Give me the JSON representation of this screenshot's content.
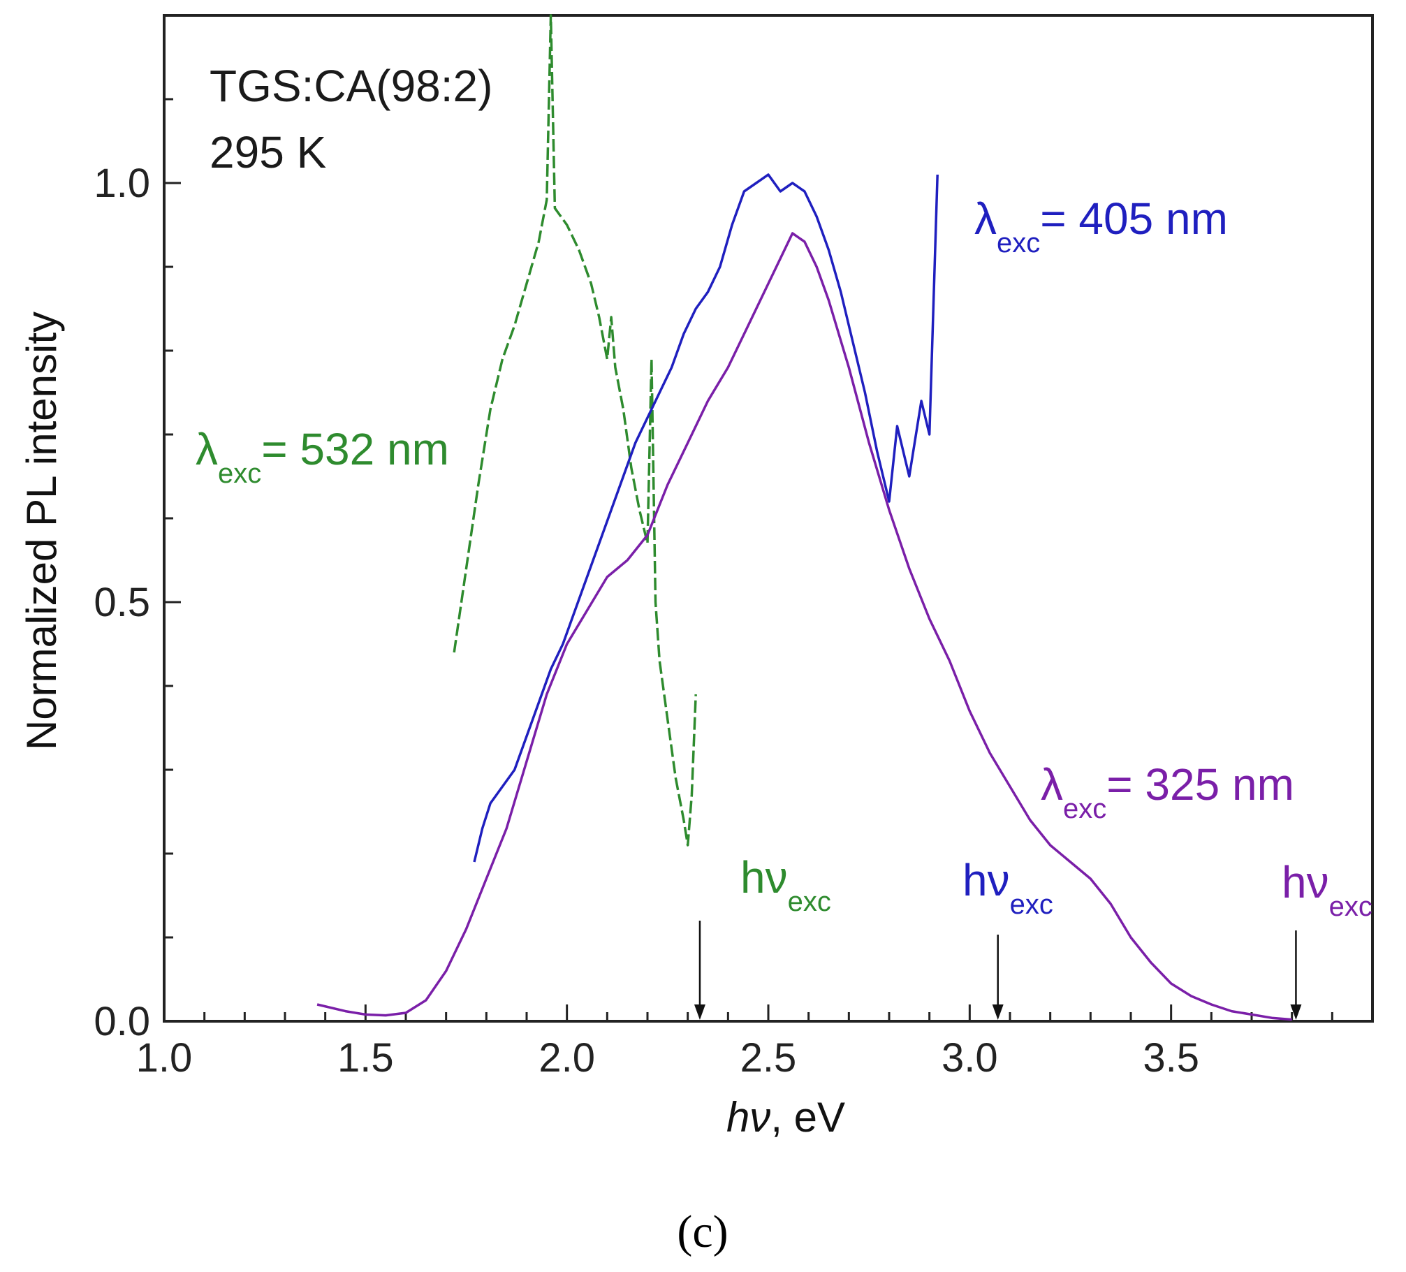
{
  "chart_data": {
    "type": "line",
    "title": "",
    "xlabel": "hν, eV",
    "xlabel_italic_part": "hν",
    "xlabel_rest": ", eV",
    "ylabel": "Normalized PL intensity",
    "xlim": [
      1.0,
      4.0
    ],
    "ylim": [
      0.0,
      1.2
    ],
    "x_ticks": [
      "1.0",
      "1.5",
      "2.0",
      "2.5",
      "3.0",
      "3.5"
    ],
    "x_tick_values": [
      1.0,
      1.5,
      2.0,
      2.5,
      3.0,
      3.5
    ],
    "y_ticks": [
      "0.0",
      "0.5",
      "1.0"
    ],
    "y_tick_values": [
      0.0,
      0.5,
      1.0
    ],
    "grid": false,
    "annotations": {
      "sample": "TGS:CA(98:2)",
      "temperature": "295 K"
    },
    "series": [
      {
        "key": "green",
        "color": "#2e8b2e",
        "style": "dashed",
        "label_prefix": "λ",
        "label_sub": "exc",
        "label_suffix": "= 532 nm",
        "excitation_energy_ev": 2.33,
        "points": [
          [
            1.72,
            0.44
          ],
          [
            1.75,
            0.54
          ],
          [
            1.78,
            0.64
          ],
          [
            1.81,
            0.73
          ],
          [
            1.84,
            0.79
          ],
          [
            1.87,
            0.83
          ],
          [
            1.9,
            0.88
          ],
          [
            1.93,
            0.93
          ],
          [
            1.95,
            0.98
          ],
          [
            1.96,
            1.2
          ],
          [
            1.97,
            0.97
          ],
          [
            2.0,
            0.95
          ],
          [
            2.03,
            0.92
          ],
          [
            2.06,
            0.88
          ],
          [
            2.08,
            0.84
          ],
          [
            2.1,
            0.79
          ],
          [
            2.11,
            0.84
          ],
          [
            2.12,
            0.78
          ],
          [
            2.14,
            0.73
          ],
          [
            2.16,
            0.66
          ],
          [
            2.18,
            0.61
          ],
          [
            2.2,
            0.57
          ],
          [
            2.21,
            0.79
          ],
          [
            2.22,
            0.5
          ],
          [
            2.23,
            0.43
          ],
          [
            2.25,
            0.36
          ],
          [
            2.27,
            0.29
          ],
          [
            2.29,
            0.24
          ],
          [
            2.3,
            0.21
          ],
          [
            2.31,
            0.27
          ],
          [
            2.32,
            0.39
          ]
        ]
      },
      {
        "key": "blue",
        "color": "#1f1fbf",
        "style": "solid",
        "label_prefix": "λ",
        "label_sub": "exc",
        "label_suffix": "= 405 nm",
        "excitation_energy_ev": 3.07,
        "points": [
          [
            1.77,
            0.19
          ],
          [
            1.79,
            0.23
          ],
          [
            1.81,
            0.26
          ],
          [
            1.84,
            0.28
          ],
          [
            1.87,
            0.3
          ],
          [
            1.9,
            0.34
          ],
          [
            1.93,
            0.38
          ],
          [
            1.96,
            0.42
          ],
          [
            1.99,
            0.45
          ],
          [
            2.02,
            0.49
          ],
          [
            2.05,
            0.53
          ],
          [
            2.08,
            0.57
          ],
          [
            2.11,
            0.61
          ],
          [
            2.14,
            0.65
          ],
          [
            2.17,
            0.69
          ],
          [
            2.2,
            0.72
          ],
          [
            2.23,
            0.75
          ],
          [
            2.26,
            0.78
          ],
          [
            2.29,
            0.82
          ],
          [
            2.32,
            0.85
          ],
          [
            2.35,
            0.87
          ],
          [
            2.38,
            0.9
          ],
          [
            2.41,
            0.95
          ],
          [
            2.44,
            0.99
          ],
          [
            2.47,
            1.0
          ],
          [
            2.5,
            1.01
          ],
          [
            2.53,
            0.99
          ],
          [
            2.56,
            1.0
          ],
          [
            2.59,
            0.99
          ],
          [
            2.62,
            0.96
          ],
          [
            2.65,
            0.92
          ],
          [
            2.68,
            0.87
          ],
          [
            2.71,
            0.81
          ],
          [
            2.74,
            0.75
          ],
          [
            2.77,
            0.68
          ],
          [
            2.8,
            0.62
          ],
          [
            2.82,
            0.71
          ],
          [
            2.85,
            0.65
          ],
          [
            2.88,
            0.74
          ],
          [
            2.9,
            0.7
          ],
          [
            2.92,
            1.01
          ]
        ]
      },
      {
        "key": "purple",
        "color": "#7a1fa8",
        "style": "solid",
        "label_prefix": "λ",
        "label_sub": "exc",
        "label_suffix": "= 325 nm",
        "excitation_energy_ev": 3.81,
        "points": [
          [
            1.38,
            0.02
          ],
          [
            1.45,
            0.012
          ],
          [
            1.5,
            0.008
          ],
          [
            1.55,
            0.007
          ],
          [
            1.6,
            0.01
          ],
          [
            1.65,
            0.025
          ],
          [
            1.7,
            0.06
          ],
          [
            1.75,
            0.11
          ],
          [
            1.8,
            0.17
          ],
          [
            1.85,
            0.23
          ],
          [
            1.9,
            0.31
          ],
          [
            1.95,
            0.39
          ],
          [
            2.0,
            0.45
          ],
          [
            2.05,
            0.49
          ],
          [
            2.1,
            0.53
          ],
          [
            2.15,
            0.55
          ],
          [
            2.2,
            0.58
          ],
          [
            2.25,
            0.64
          ],
          [
            2.3,
            0.69
          ],
          [
            2.35,
            0.74
          ],
          [
            2.4,
            0.78
          ],
          [
            2.45,
            0.83
          ],
          [
            2.5,
            0.88
          ],
          [
            2.53,
            0.91
          ],
          [
            2.56,
            0.94
          ],
          [
            2.59,
            0.93
          ],
          [
            2.62,
            0.9
          ],
          [
            2.65,
            0.86
          ],
          [
            2.7,
            0.78
          ],
          [
            2.75,
            0.69
          ],
          [
            2.8,
            0.61
          ],
          [
            2.85,
            0.54
          ],
          [
            2.9,
            0.48
          ],
          [
            2.95,
            0.43
          ],
          [
            3.0,
            0.37
          ],
          [
            3.05,
            0.32
          ],
          [
            3.1,
            0.28
          ],
          [
            3.15,
            0.24
          ],
          [
            3.2,
            0.21
          ],
          [
            3.25,
            0.19
          ],
          [
            3.3,
            0.17
          ],
          [
            3.35,
            0.14
          ],
          [
            3.4,
            0.1
          ],
          [
            3.45,
            0.07
          ],
          [
            3.5,
            0.045
          ],
          [
            3.55,
            0.03
          ],
          [
            3.6,
            0.02
          ],
          [
            3.65,
            0.012
          ],
          [
            3.7,
            0.008
          ],
          [
            3.75,
            0.004
          ],
          [
            3.8,
            0.002
          ]
        ]
      }
    ],
    "excitation_markers": [
      {
        "key": "green",
        "color": "#2e8b2e",
        "label_main": "hν",
        "label_sub": "exc",
        "x": 2.33
      },
      {
        "key": "blue",
        "color": "#1f1fbf",
        "label_main": "hν",
        "label_sub": "exc",
        "x": 3.07
      },
      {
        "key": "purple",
        "color": "#7a1fa8",
        "label_main": "hν",
        "label_sub": "exc",
        "x": 3.81
      }
    ]
  },
  "panel_label": "(c)"
}
